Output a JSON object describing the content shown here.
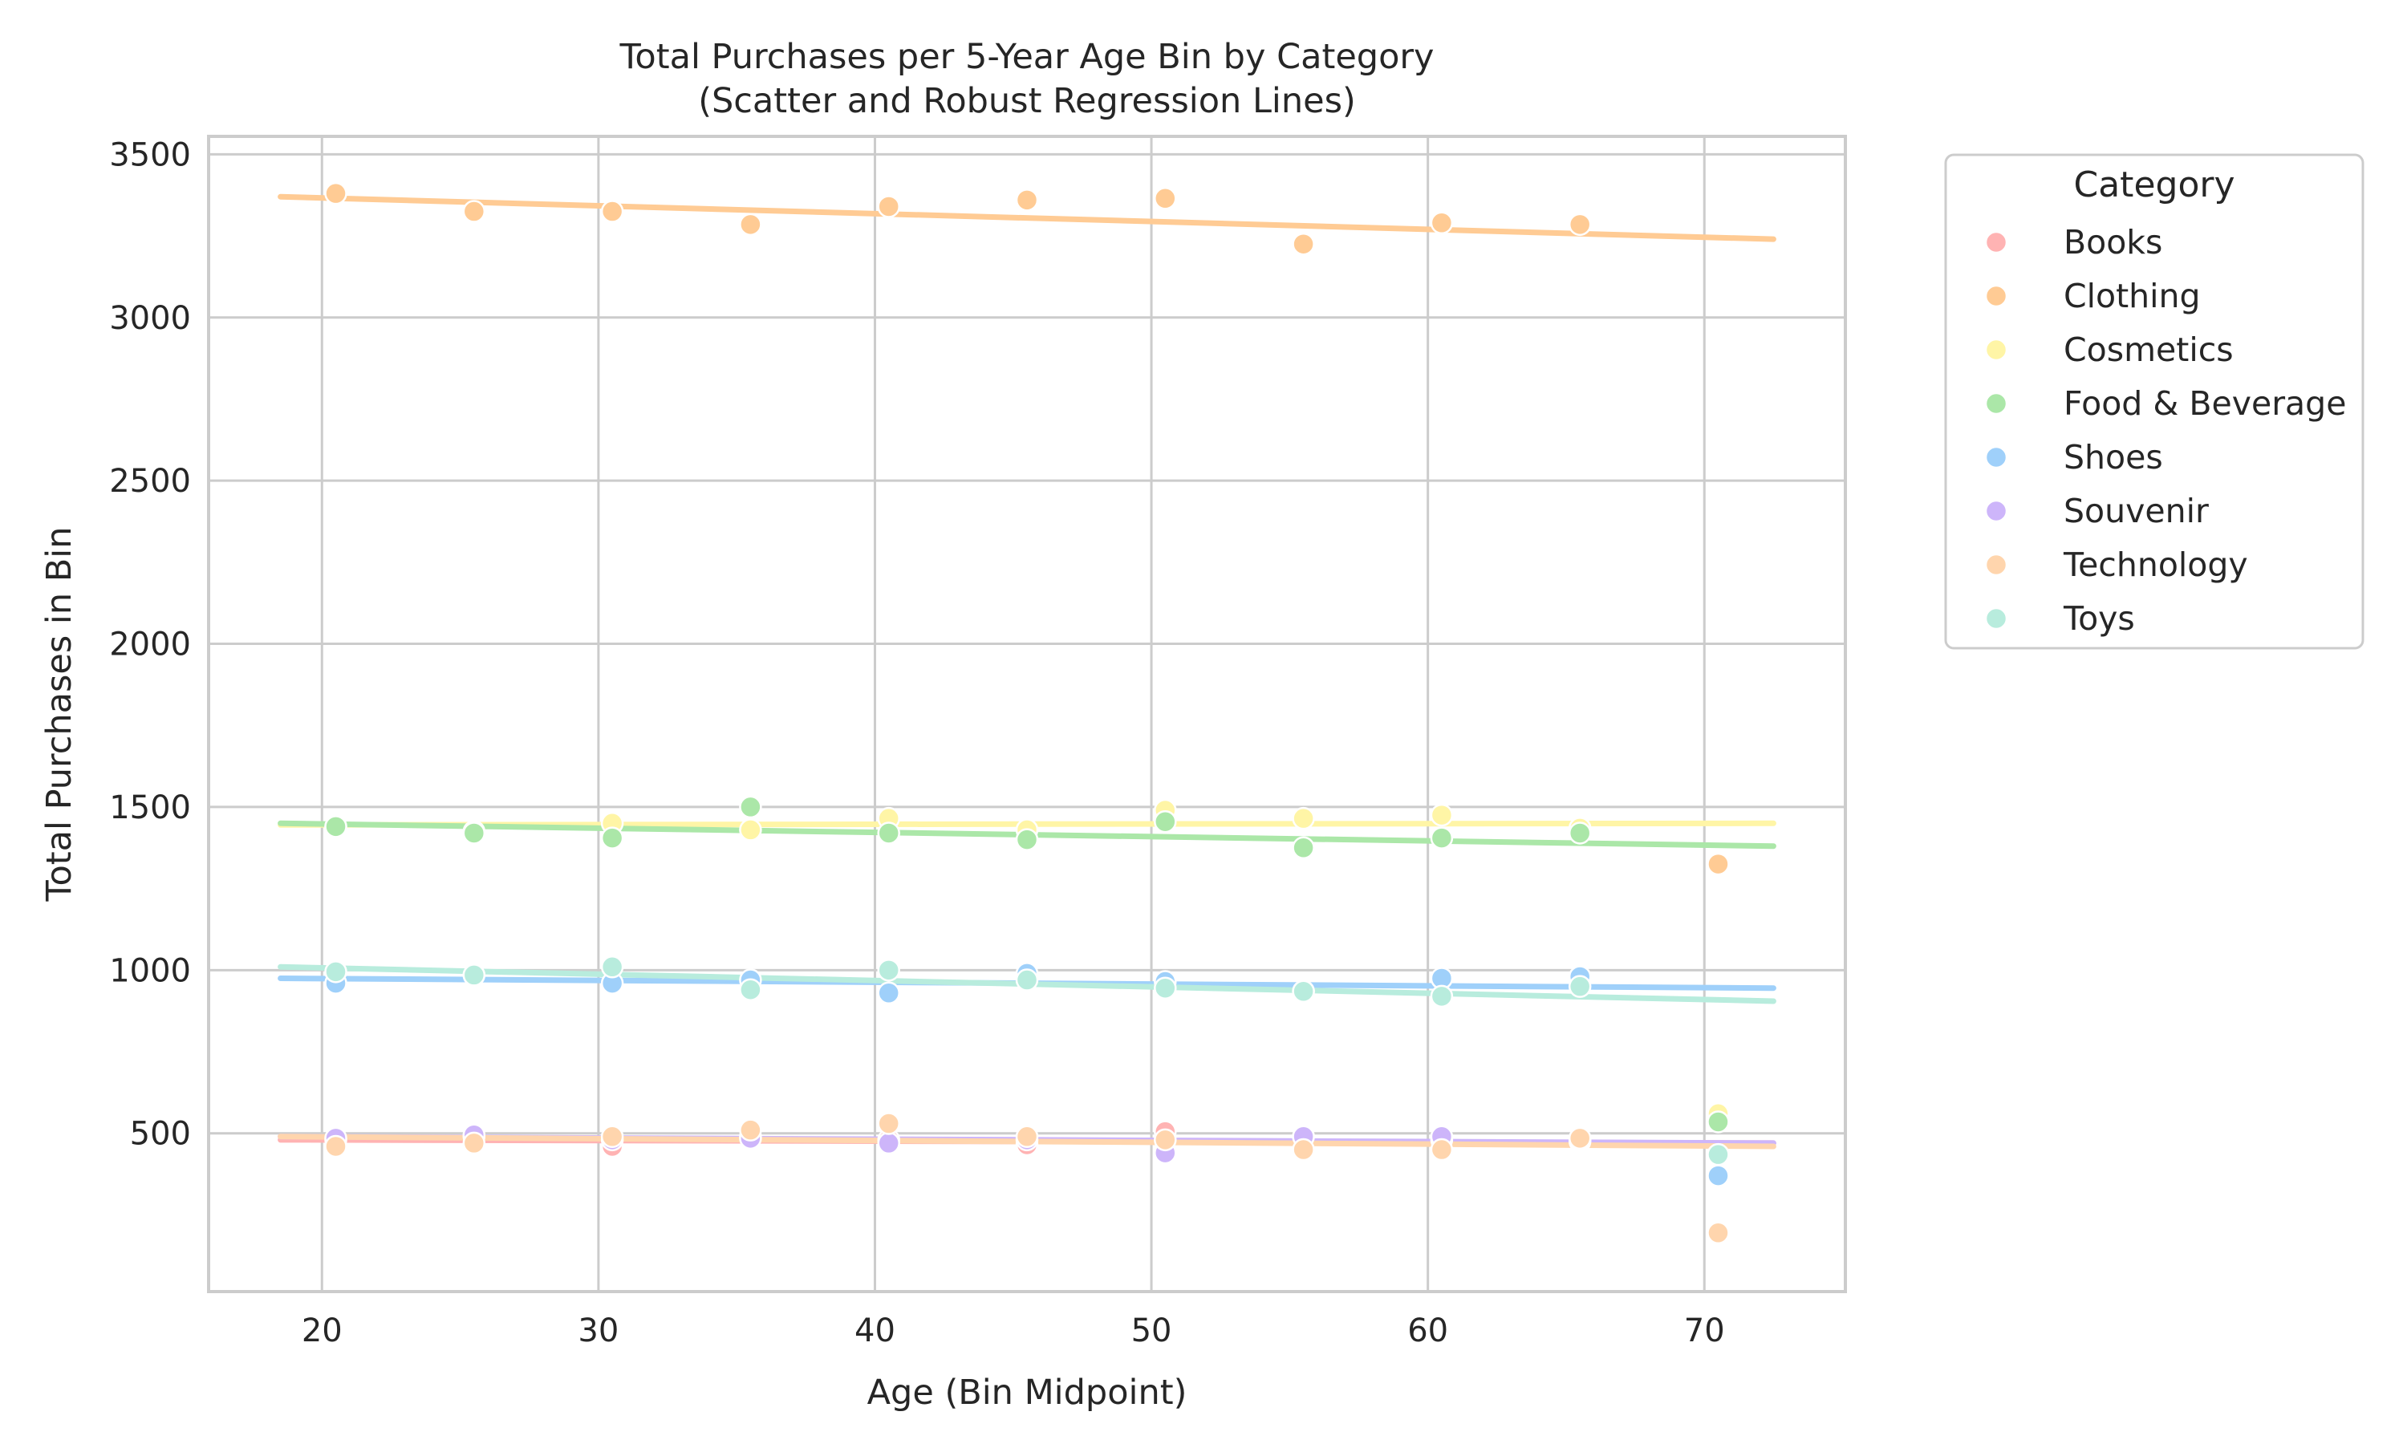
{
  "chart_data": {
    "type": "scatter",
    "title": "Total Purchases per 5-Year Age Bin by Category",
    "subtitle": "(Scatter and Robust Regression Lines)",
    "xlabel": "Age (Bin Midpoint)",
    "ylabel": "Total Purchases in Bin",
    "xlim": [
      15.9,
      75.1
    ],
    "ylim": [
      15,
      3555
    ],
    "x_ticks": [
      20,
      30,
      40,
      50,
      60,
      70
    ],
    "y_ticks": [
      500,
      1000,
      1500,
      2000,
      2500,
      3000,
      3500
    ],
    "grid": true,
    "legend": {
      "title": "Category",
      "placement": "outside-right-top"
    },
    "x": [
      20.5,
      25.5,
      30.5,
      35.5,
      40.5,
      45.5,
      50.5,
      55.5,
      60.5,
      65.5,
      70.5
    ],
    "series": [
      {
        "name": "Books",
        "color": "#ffb3b3",
        "values": [
          480,
          490,
          460,
          490,
          480,
          465,
          505,
          490,
          480,
          475,
          null
        ],
        "fit": {
          "x": [
            18.5,
            72.5
          ],
          "y": [
            480,
            470
          ]
        }
      },
      {
        "name": "Clothing",
        "color": "#ffcb94",
        "values": [
          3380,
          3325,
          3325,
          3285,
          3340,
          3360,
          3365,
          3225,
          3290,
          3285,
          1325
        ],
        "fit": {
          "x": [
            18.5,
            72.5
          ],
          "y": [
            3370,
            3240
          ]
        }
      },
      {
        "name": "Cosmetics",
        "color": "#fff5a6",
        "values": [
          1440,
          1425,
          1450,
          1430,
          1465,
          1430,
          1490,
          1465,
          1475,
          1435,
          560
        ],
        "fit": {
          "x": [
            18.5,
            72.5
          ],
          "y": [
            1445,
            1450
          ]
        }
      },
      {
        "name": "Food & Beverage",
        "color": "#abe7a8",
        "values": [
          1440,
          1420,
          1405,
          1500,
          1420,
          1400,
          1455,
          1375,
          1405,
          1420,
          535
        ],
        "fit": {
          "x": [
            18.5,
            72.5
          ],
          "y": [
            1450,
            1380
          ]
        }
      },
      {
        "name": "Shoes",
        "color": "#9fd0fa",
        "values": [
          960,
          985,
          960,
          970,
          930,
          990,
          965,
          935,
          975,
          980,
          370
        ],
        "fit": {
          "x": [
            18.5,
            72.5
          ],
          "y": [
            975,
            945
          ]
        }
      },
      {
        "name": "Souvenir",
        "color": "#cdb5fa",
        "values": [
          485,
          495,
          480,
          485,
          470,
          480,
          440,
          490,
          490,
          480,
          null
        ],
        "fit": {
          "x": [
            18.5,
            72.5
          ],
          "y": [
            490,
            470
          ]
        }
      },
      {
        "name": "Technology",
        "color": "#ffd5ad",
        "values": [
          460,
          470,
          490,
          510,
          530,
          490,
          480,
          450,
          450,
          485,
          195
        ],
        "fit": {
          "x": [
            18.5,
            72.5
          ],
          "y": [
            490,
            460
          ]
        }
      },
      {
        "name": "Toys",
        "color": "#b8ecdd",
        "values": [
          995,
          985,
          1010,
          940,
          1000,
          970,
          945,
          935,
          920,
          950,
          435
        ],
        "fit": {
          "x": [
            18.5,
            72.5
          ],
          "y": [
            1010,
            905
          ]
        }
      }
    ]
  }
}
